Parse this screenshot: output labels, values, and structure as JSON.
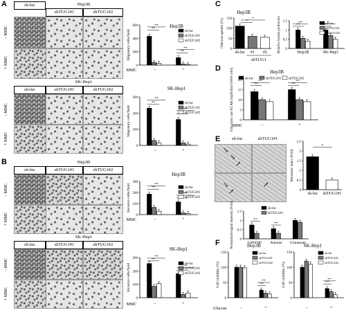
{
  "letters": {
    "a": "A",
    "b": "B",
    "c": "C",
    "d": "D",
    "e": "E",
    "f": "F"
  },
  "groups": {
    "sh_luc": "sh-luc",
    "sh1": "shTUG1#1",
    "sh2": "shTUG1#2"
  },
  "cells": {
    "hep3b": "Hep3B",
    "skhep1": "SK-Hep1"
  },
  "mmc": {
    "minus": "– MMC",
    "plus": "+ MMC",
    "axis": "MMC",
    "neg": "–",
    "pos": "+"
  },
  "colors": {
    "black": "#000000",
    "grey": "#777777",
    "white": "#ffffff"
  },
  "panelA": {
    "hep3b_title": "Hep3B",
    "skhep1_title": "SK-Hep1",
    "ylabel": "Migratory cells/field",
    "legend": [
      "sh-luc",
      "shTUG1#1",
      "shTUG1#2"
    ]
  },
  "panelB": {
    "hep3b_title": "Hep3B",
    "skhep1_title": "SK-Hep1",
    "ylabel": "Invasive cells/field",
    "legend": [
      "sh-luc",
      "shTUG1#1",
      "shTUG1#2"
    ]
  },
  "panelC": {
    "title": "Hep3B",
    "ylabel_left": "Glucose uptake (%)",
    "xlabel_group": "shTUG1",
    "ylabel_right": "Relative lactate production"
  },
  "panelD": {
    "title": "Hep3B",
    "ylabel": "Glycolytic rate ECAR (mpH/min/10000 cells)"
  },
  "panelE": {
    "sh_luc": "sh-luc",
    "sh1": "shTUG1#1",
    "ylabel_right": "Metastatic index (Fold)",
    "ylabel_bottom": "Normalized signal intensity (Fold)",
    "legend": [
      "sh-luc",
      "shTUG1#1"
    ]
  },
  "panelF": {
    "hep3b": "Hep3B",
    "skhep1": "SK-Hep1",
    "ylabel": "Cell viability (%)",
    "xlabel": "Glucose",
    "neg": "–",
    "pos": "+",
    "legend": [
      "sh-luc",
      "shTUG1#1",
      "shTUG1#2"
    ]
  },
  "sig": "**",
  "sig1": "*",
  "chart_data": [
    {
      "id": "A-hep3b",
      "type": "bar",
      "categories": [
        "–",
        "+"
      ],
      "xlabel": "MMC",
      "ylabel": "Migratory cells/field",
      "ylim": [
        0,
        600
      ],
      "yticks": [
        0,
        200,
        400,
        600
      ],
      "series": [
        {
          "name": "sh-luc",
          "values": [
            430,
            110
          ]
        },
        {
          "name": "shTUG1#1",
          "values": [
            40,
            15
          ]
        },
        {
          "name": "shTUG1#2",
          "values": [
            25,
            10
          ]
        }
      ]
    },
    {
      "id": "A-skhep1",
      "type": "bar",
      "categories": [
        "–",
        "+"
      ],
      "xlabel": "MMC",
      "ylabel": "Migratory cells/field",
      "ylim": [
        0,
        300
      ],
      "yticks": [
        0,
        100,
        200,
        300
      ],
      "series": [
        {
          "name": "sh-luc",
          "values": [
            230,
            160
          ]
        },
        {
          "name": "shTUG1#1",
          "values": [
            30,
            15
          ]
        },
        {
          "name": "shTUG1#2",
          "values": [
            15,
            8
          ]
        }
      ]
    },
    {
      "id": "B-hep3b",
      "type": "bar",
      "categories": [
        "–",
        "+"
      ],
      "xlabel": "MMC",
      "ylabel": "Invasive cells/field",
      "ylim": [
        0,
        300
      ],
      "yticks": [
        0,
        100,
        200,
        300
      ],
      "series": [
        {
          "name": "sh-luc",
          "values": [
            185,
            115
          ]
        },
        {
          "name": "shTUG1#1",
          "values": [
            65,
            15
          ]
        },
        {
          "name": "shTUG1#2",
          "values": [
            30,
            10
          ]
        }
      ]
    },
    {
      "id": "B-skhep1",
      "type": "bar",
      "categories": [
        "–",
        "+"
      ],
      "xlabel": "MMC",
      "ylabel": "Invasive cells/field",
      "ylim": [
        0,
        300
      ],
      "yticks": [
        0,
        100,
        200,
        300
      ],
      "series": [
        {
          "name": "sh-luc",
          "values": [
            255,
            180
          ]
        },
        {
          "name": "shTUG1#1",
          "values": [
            85,
            25
          ]
        },
        {
          "name": "shTUG1#2",
          "values": [
            105,
            35
          ]
        }
      ]
    },
    {
      "id": "C-glucose",
      "type": "bar",
      "categories": [
        "sh-luc",
        "#1",
        "#2"
      ],
      "ylabel": "Glucose uptake (%)",
      "ylim": [
        0,
        150
      ],
      "yticks": [
        0,
        50,
        100,
        150
      ],
      "series": [
        {
          "name": "uptake",
          "values": [
            110,
            60,
            55
          ]
        }
      ]
    },
    {
      "id": "C-lactate",
      "type": "bar",
      "categories": [
        "Hep3B",
        "SK-Hep1"
      ],
      "ylabel": "Relative lactate production",
      "ylim": [
        0,
        1.5
      ],
      "yticks": [
        0,
        0.5,
        1.0,
        1.5
      ],
      "series": [
        {
          "name": "sh-luc",
          "values": [
            1.0,
            1.0
          ]
        },
        {
          "name": "shTUG1#1",
          "values": [
            0.55,
            0.7
          ]
        },
        {
          "name": "shTUG1#2",
          "values": [
            0.4,
            0.5
          ]
        }
      ]
    },
    {
      "id": "D",
      "type": "bar",
      "categories": [
        "–",
        "+"
      ],
      "xlabel": "MMC",
      "ylabel": "Glycolytic rate ECAR (mpH/min/10000 cells)",
      "ylim": [
        0,
        20
      ],
      "yticks": [
        0,
        5,
        10,
        15,
        20
      ],
      "series": [
        {
          "name": "sh-luc",
          "values": [
            14,
            15
          ]
        },
        {
          "name": "shTUG1#1",
          "values": [
            10,
            10
          ]
        },
        {
          "name": "shTUG1#2",
          "values": [
            9,
            9
          ]
        }
      ]
    },
    {
      "id": "E-index",
      "type": "bar",
      "categories": [
        "sh-luc",
        "shTUG1#1"
      ],
      "ylabel": "Metastatic index (Fold)",
      "ylim": [
        0,
        2.5
      ],
      "yticks": [
        0,
        0.5,
        1.0,
        1.5,
        2.0,
        2.5
      ],
      "series": [
        {
          "name": "index",
          "values": [
            1.7,
            0.5
          ]
        }
      ]
    },
    {
      "id": "E-signal",
      "type": "bar",
      "categories": [
        "G6P/F6P",
        "Alanine",
        "Glutamate"
      ],
      "ylabel": "Normalized signal intensity (Fold)",
      "ylim": [
        0,
        1.5
      ],
      "yticks": [
        0,
        0.5,
        1.0,
        1.5
      ],
      "series": [
        {
          "name": "sh-luc",
          "values": [
            0.75,
            0.55,
            1.0
          ]
        },
        {
          "name": "shTUG1#1",
          "values": [
            0.3,
            0.3,
            0.9
          ]
        }
      ]
    },
    {
      "id": "F-hep3b",
      "type": "bar",
      "categories": [
        "–",
        "+"
      ],
      "xlabel": "Glucose",
      "ylabel": "Cell viability (%)",
      "ylim": [
        0,
        150
      ],
      "yticks": [
        0,
        50,
        100,
        150
      ],
      "series": [
        {
          "name": "sh-luc",
          "values": [
            100,
            25
          ]
        },
        {
          "name": "shTUG1#1",
          "values": [
            100,
            15
          ]
        },
        {
          "name": "shTUG1#2",
          "values": [
            98,
            12
          ]
        }
      ]
    },
    {
      "id": "F-skhep1",
      "type": "bar",
      "categories": [
        "–",
        "+"
      ],
      "xlabel": "Glucose",
      "ylabel": "Cell viability (%)",
      "ylim": [
        0,
        150
      ],
      "yticks": [
        0,
        50,
        100,
        150
      ],
      "series": [
        {
          "name": "sh-luc",
          "values": [
            100,
            30
          ]
        },
        {
          "name": "shTUG1#1",
          "values": [
            120,
            20
          ]
        },
        {
          "name": "shTUG1#2",
          "values": [
            110,
            10
          ]
        }
      ]
    }
  ]
}
